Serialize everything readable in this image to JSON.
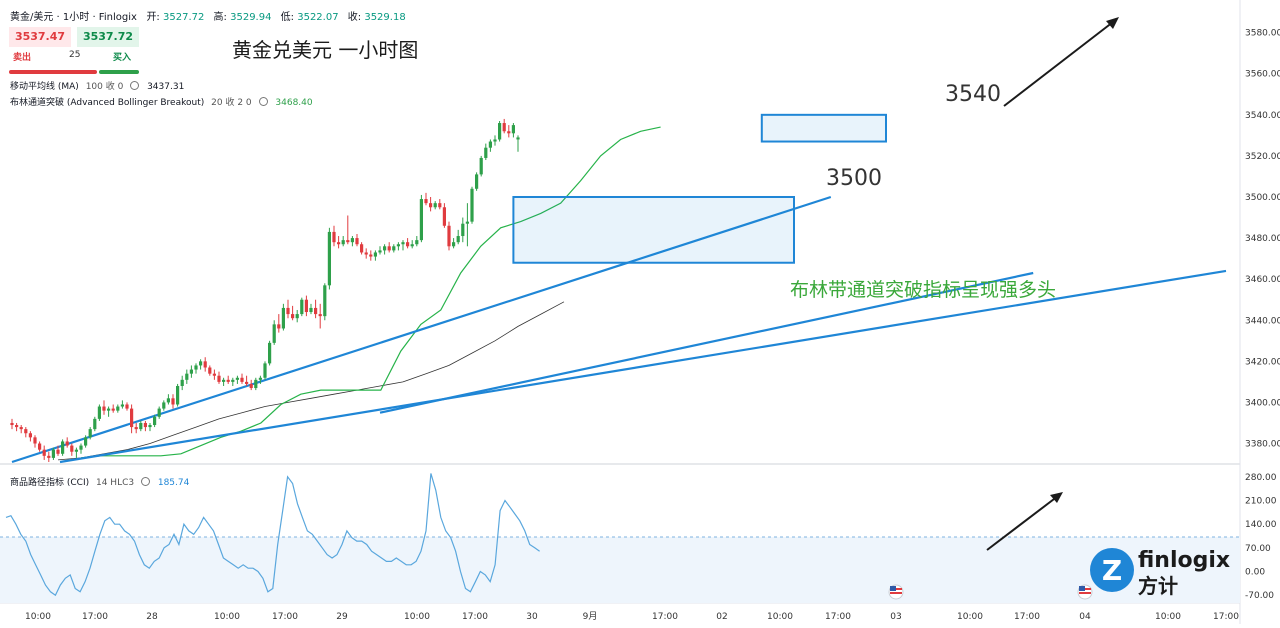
{
  "header": {
    "symbol": "黄金/美元 · 1小时 · Finlogix",
    "open_label": "开:",
    "open": "3527.72",
    "high_label": "高:",
    "high": "3529.94",
    "low_label": "低:",
    "low": "3522.07",
    "close_label": "收:",
    "close": "3529.18"
  },
  "quote": {
    "sell_price": "3537.47",
    "buy_price": "3537.72",
    "sell_label": "卖出",
    "buy_label": "买入",
    "size": "25"
  },
  "indicators": {
    "ma_label": "移动平均线 (MA)",
    "ma_params": "100 收 0",
    "ma_value": "3437.31",
    "bb_label": "布林通道突破 (Advanced Bollinger Breakout)",
    "bb_params": "20 收 2 0",
    "bb_value": "3468.40",
    "cci_label": "商品路径指标 (CCI)",
    "cci_params": "14 HLC3",
    "cci_value": "185.74"
  },
  "annotations": {
    "title": "黄金兑美元 一小时图",
    "level_3540": "3540",
    "level_3500": "3500",
    "breakout_note": "布林带通道突破指标呈现强多头"
  },
  "logo": {
    "text_en": "finlogix",
    "text_cn": "方计"
  },
  "colors": {
    "up": "#2ea04a",
    "down": "#e03b3f",
    "trend": "#1f86d6",
    "bb": "#27b34a",
    "ma": "#333333",
    "cci": "#5aa7dd",
    "note": "#3aa83a"
  },
  "chart_data": {
    "type": "candlestick",
    "price_axis": {
      "ticks": [
        "3580.00",
        "3560.00",
        "3540.00",
        "3520.00",
        "3500.00",
        "3480.00",
        "3460.00",
        "3440.00",
        "3420.00",
        "3400.00",
        "3380.00"
      ],
      "ylim": [
        3371,
        3592
      ]
    },
    "cci_axis": {
      "ticks": [
        "280.00",
        "210.00",
        "140.00",
        "70.00",
        "0.00",
        "-70.00"
      ],
      "ylim": [
        -90,
        300
      ],
      "band": [
        -100,
        100
      ]
    },
    "time_axis": {
      "ticks": [
        "10:00",
        "17:00",
        "28",
        "10:00",
        "17:00",
        "29",
        "10:00",
        "17:00",
        "30",
        "9月",
        "17:00",
        "02",
        "10:00",
        "17:00",
        "03",
        "10:00",
        "17:00",
        "04",
        "10:00",
        "17:00"
      ]
    },
    "candles": [
      [
        3390,
        3392,
        3387,
        3389
      ],
      [
        3389,
        3390,
        3386,
        3388
      ],
      [
        3388,
        3389,
        3385,
        3387
      ],
      [
        3387,
        3388,
        3383,
        3385
      ],
      [
        3385,
        3386,
        3381,
        3383
      ],
      [
        3383,
        3384,
        3378,
        3380
      ],
      [
        3380,
        3381,
        3376,
        3377
      ],
      [
        3377,
        3379,
        3372,
        3374
      ],
      [
        3374,
        3376,
        3371,
        3373
      ],
      [
        3373,
        3378,
        3372,
        3377
      ],
      [
        3377,
        3379,
        3374,
        3375
      ],
      [
        3375,
        3382,
        3374,
        3381
      ],
      [
        3381,
        3383,
        3378,
        3379
      ],
      [
        3379,
        3380,
        3374,
        3376
      ],
      [
        3376,
        3378,
        3373,
        3377
      ],
      [
        3377,
        3380,
        3375,
        3379
      ],
      [
        3379,
        3384,
        3378,
        3383
      ],
      [
        3383,
        3388,
        3382,
        3387
      ],
      [
        3387,
        3393,
        3386,
        3392
      ],
      [
        3392,
        3399,
        3391,
        3398
      ],
      [
        3398,
        3401,
        3394,
        3396
      ],
      [
        3396,
        3398,
        3393,
        3397
      ],
      [
        3397,
        3399,
        3395,
        3396
      ],
      [
        3396,
        3399,
        3395,
        3398
      ],
      [
        3398,
        3401,
        3397,
        3399
      ],
      [
        3399,
        3400,
        3396,
        3397
      ],
      [
        3397,
        3399,
        3385,
        3388
      ],
      [
        3388,
        3390,
        3385,
        3387
      ],
      [
        3387,
        3391,
        3386,
        3390
      ],
      [
        3390,
        3391,
        3386,
        3388
      ],
      [
        3388,
        3390,
        3386,
        3389
      ],
      [
        3389,
        3394,
        3388,
        3393
      ],
      [
        3393,
        3398,
        3392,
        3397
      ],
      [
        3397,
        3401,
        3396,
        3400
      ],
      [
        3400,
        3404,
        3399,
        3402
      ],
      [
        3402,
        3404,
        3397,
        3399
      ],
      [
        3399,
        3409,
        3398,
        3408
      ],
      [
        3408,
        3413,
        3406,
        3411
      ],
      [
        3411,
        3416,
        3409,
        3414
      ],
      [
        3414,
        3418,
        3412,
        3416
      ],
      [
        3416,
        3419,
        3414,
        3418
      ],
      [
        3418,
        3421,
        3416,
        3420
      ],
      [
        3420,
        3422,
        3415,
        3417
      ],
      [
        3417,
        3418,
        3413,
        3414
      ],
      [
        3414,
        3416,
        3411,
        3413
      ],
      [
        3413,
        3415,
        3409,
        3410
      ],
      [
        3410,
        3412,
        3408,
        3411
      ],
      [
        3411,
        3413,
        3409,
        3410
      ],
      [
        3410,
        3412,
        3408,
        3411
      ],
      [
        3411,
        3413,
        3409,
        3412
      ],
      [
        3412,
        3414,
        3409,
        3410
      ],
      [
        3410,
        3413,
        3408,
        3409
      ],
      [
        3409,
        3411,
        3406,
        3407
      ],
      [
        3407,
        3412,
        3406,
        3411
      ],
      [
        3411,
        3413,
        3409,
        3412
      ],
      [
        3412,
        3420,
        3411,
        3419
      ],
      [
        3419,
        3430,
        3418,
        3429
      ],
      [
        3429,
        3440,
        3428,
        3438
      ],
      [
        3438,
        3443,
        3434,
        3436
      ],
      [
        3436,
        3448,
        3435,
        3446
      ],
      [
        3446,
        3450,
        3441,
        3443
      ],
      [
        3443,
        3447,
        3440,
        3441
      ],
      [
        3441,
        3445,
        3439,
        3443
      ],
      [
        3443,
        3451,
        3442,
        3450
      ],
      [
        3450,
        3452,
        3442,
        3444
      ],
      [
        3444,
        3448,
        3443,
        3446
      ],
      [
        3446,
        3450,
        3441,
        3443
      ],
      [
        3443,
        3448,
        3436,
        3442
      ],
      [
        3442,
        3458,
        3440,
        3457
      ],
      [
        3457,
        3485,
        3455,
        3483
      ],
      [
        3483,
        3486,
        3476,
        3478
      ],
      [
        3478,
        3481,
        3475,
        3477
      ],
      [
        3477,
        3481,
        3476,
        3479
      ],
      [
        3479,
        3491,
        3477,
        3478
      ],
      [
        3478,
        3481,
        3476,
        3480
      ],
      [
        3480,
        3482,
        3476,
        3477
      ],
      [
        3477,
        3478,
        3472,
        3473
      ],
      [
        3473,
        3475,
        3470,
        3472
      ],
      [
        3472,
        3474,
        3469,
        3471
      ],
      [
        3471,
        3474,
        3469,
        3473
      ],
      [
        3473,
        3476,
        3472,
        3474
      ],
      [
        3474,
        3477,
        3472,
        3476
      ],
      [
        3476,
        3478,
        3473,
        3474
      ],
      [
        3474,
        3477,
        3473,
        3476
      ],
      [
        3476,
        3478,
        3474,
        3477
      ],
      [
        3477,
        3479,
        3474,
        3478
      ],
      [
        3478,
        3480,
        3475,
        3476
      ],
      [
        3476,
        3479,
        3475,
        3477
      ],
      [
        3477,
        3481,
        3476,
        3479
      ],
      [
        3479,
        3501,
        3478,
        3499
      ],
      [
        3499,
        3502,
        3496,
        3497
      ],
      [
        3497,
        3500,
        3493,
        3495
      ],
      [
        3495,
        3498,
        3494,
        3497
      ],
      [
        3497,
        3499,
        3494,
        3495
      ],
      [
        3495,
        3497,
        3485,
        3486
      ],
      [
        3486,
        3488,
        3474,
        3476
      ],
      [
        3476,
        3480,
        3475,
        3478
      ],
      [
        3478,
        3484,
        3477,
        3481
      ],
      [
        3481,
        3490,
        3478,
        3487
      ],
      [
        3487,
        3497,
        3476,
        3488
      ],
      [
        3488,
        3505,
        3487,
        3504
      ],
      [
        3504,
        3512,
        3503,
        3511
      ],
      [
        3511,
        3520,
        3510,
        3519
      ],
      [
        3519,
        3526,
        3518,
        3524
      ],
      [
        3524,
        3528,
        3522,
        3527
      ],
      [
        3527,
        3530,
        3525,
        3528
      ],
      [
        3528,
        3537,
        3527,
        3536
      ],
      [
        3536,
        3538,
        3531,
        3532
      ],
      [
        3532,
        3535,
        3529,
        3531
      ],
      [
        3531,
        3536,
        3529,
        3535
      ],
      [
        3528,
        3530,
        3522,
        3529
      ]
    ],
    "ma100": [
      3372,
      3373,
      3375,
      3377,
      3380,
      3384,
      3388,
      3392,
      3395,
      3398,
      3400,
      3402,
      3404,
      3406,
      3408,
      3410,
      3414,
      3418,
      3424,
      3430,
      3437,
      3443,
      3449
    ],
    "bb_breakout": [
      3373,
      3374,
      3374,
      3374,
      3374,
      3375,
      3379,
      3383,
      3386,
      3390,
      3399,
      3404,
      3406,
      3406,
      3406,
      3406,
      3425,
      3438,
      3445,
      3463,
      3476,
      3485,
      3488,
      3492,
      3497,
      3508,
      3520,
      3528,
      3532,
      3534
    ],
    "cci": [
      160,
      165,
      140,
      110,
      90,
      50,
      20,
      -10,
      -40,
      -60,
      -70,
      -40,
      -20,
      -10,
      -50,
      -60,
      -30,
      10,
      60,
      110,
      150,
      160,
      140,
      140,
      120,
      110,
      90,
      50,
      20,
      10,
      30,
      40,
      70,
      80,
      110,
      80,
      140,
      120,
      110,
      130,
      160,
      140,
      120,
      80,
      40,
      30,
      20,
      10,
      20,
      10,
      10,
      0,
      -20,
      -60,
      -50,
      80,
      180,
      280,
      260,
      200,
      160,
      120,
      110,
      90,
      70,
      50,
      40,
      50,
      80,
      120,
      100,
      90,
      90,
      80,
      60,
      50,
      40,
      30,
      30,
      40,
      30,
      20,
      20,
      30,
      60,
      120,
      290,
      240,
      160,
      120,
      100,
      60,
      0,
      -50,
      -60,
      -30,
      0,
      -10,
      -30,
      20,
      180,
      210,
      190,
      170,
      150,
      120,
      80,
      70,
      60
    ],
    "trend_lines": [
      {
        "name": "upper-trendline",
        "from": [
          0,
          3371
        ],
        "to": [
          178,
          3500
        ]
      },
      {
        "name": "lower-trendline",
        "from": [
          80,
          3395
        ],
        "to": [
          222,
          3463
        ]
      }
    ],
    "boxes": [
      {
        "name": "consolidation-box-3500",
        "x0": 109,
        "x1": 170,
        "y0": 3468,
        "y1": 3500
      },
      {
        "name": "consolidation-box-3540",
        "x0": 163,
        "x1": 190,
        "y0": 3527,
        "y1": 3540
      }
    ]
  }
}
